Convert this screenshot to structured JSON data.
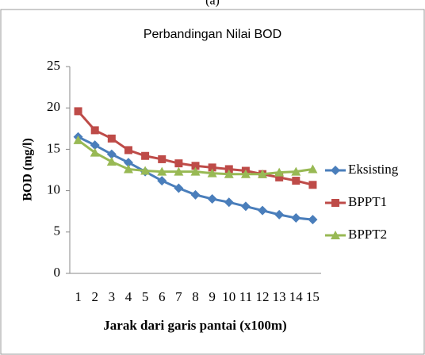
{
  "caption": "(a)",
  "chart_data": {
    "type": "line",
    "title": "Perbandingan Nilai BOD",
    "y_label": "BOD (mg/l)",
    "x_label": "Jarak dari garis pantai (x100m)",
    "categories": [
      "1",
      "2",
      "3",
      "4",
      "5",
      "6",
      "7",
      "8",
      "9",
      "10",
      "11",
      "12",
      "13",
      "14",
      "15"
    ],
    "series": [
      {
        "name": "Eksisting",
        "color": "#4a7ebb",
        "values": [
          16.5,
          15.5,
          14.4,
          13.4,
          12.3,
          11.2,
          10.3,
          9.5,
          9.0,
          8.6,
          8.1,
          7.6,
          7.1,
          6.7,
          6.5
        ]
      },
      {
        "name": "BPPT1",
        "color": "#be4b48",
        "values": [
          19.6,
          17.3,
          16.3,
          14.9,
          14.2,
          13.8,
          13.3,
          13.0,
          12.8,
          12.6,
          12.4,
          12.0,
          11.6,
          11.2,
          10.7
        ]
      },
      {
        "name": "BPPT2",
        "color": "#98b954",
        "values": [
          16.1,
          14.6,
          13.5,
          12.6,
          12.4,
          12.3,
          12.3,
          12.3,
          12.1,
          12.0,
          12.0,
          12.0,
          12.2,
          12.3,
          12.6
        ]
      }
    ],
    "ylim": [
      0,
      25
    ],
    "yticks": [
      0,
      5,
      10,
      15,
      20,
      25
    ],
    "grid": false,
    "legend": "right"
  }
}
